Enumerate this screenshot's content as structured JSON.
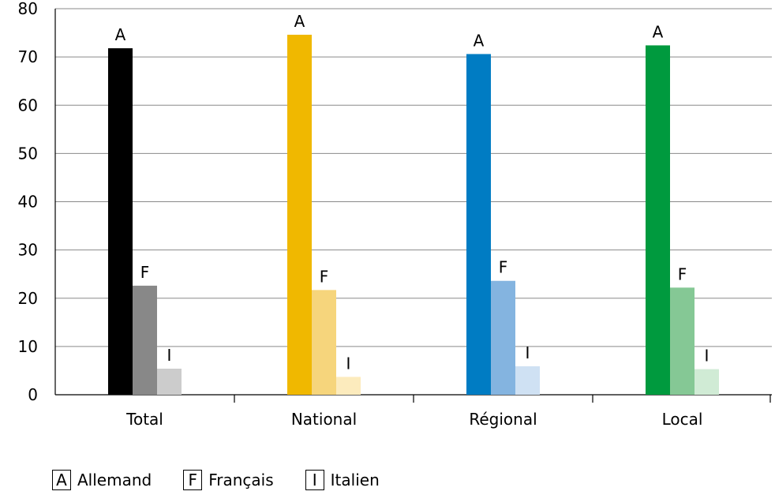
{
  "chart_data": {
    "type": "bar",
    "categories": [
      "Total",
      "National",
      "Régional",
      "Local"
    ],
    "series": [
      {
        "name": "Allemand",
        "label": "A",
        "values": [
          71.8,
          74.6,
          70.6,
          72.4
        ]
      },
      {
        "name": "Français",
        "label": "F",
        "values": [
          22.6,
          21.7,
          23.6,
          22.2
        ]
      },
      {
        "name": "Italien",
        "label": "I",
        "values": [
          5.4,
          3.7,
          5.9,
          5.3
        ]
      }
    ],
    "colors": [
      [
        "#000000",
        "#888888",
        "#cccccc"
      ],
      [
        "#f0b800",
        "#f6d57c",
        "#fcebbd"
      ],
      [
        "#007cc3",
        "#84b4e0",
        "#cfe1f3"
      ],
      [
        "#009a3e",
        "#85c895",
        "#d0ebd5"
      ]
    ],
    "ylim": [
      0,
      80
    ],
    "yticks": [
      "0",
      "10",
      "20",
      "30",
      "40",
      "50",
      "60",
      "70",
      "80"
    ],
    "grid": true,
    "legend_position": "bottom-left",
    "title": "",
    "xlabel": "",
    "ylabel": ""
  },
  "legend": [
    {
      "key": "A",
      "text": "Allemand"
    },
    {
      "key": "F",
      "text": "Français"
    },
    {
      "key": "I",
      "text": "Italien"
    }
  ]
}
